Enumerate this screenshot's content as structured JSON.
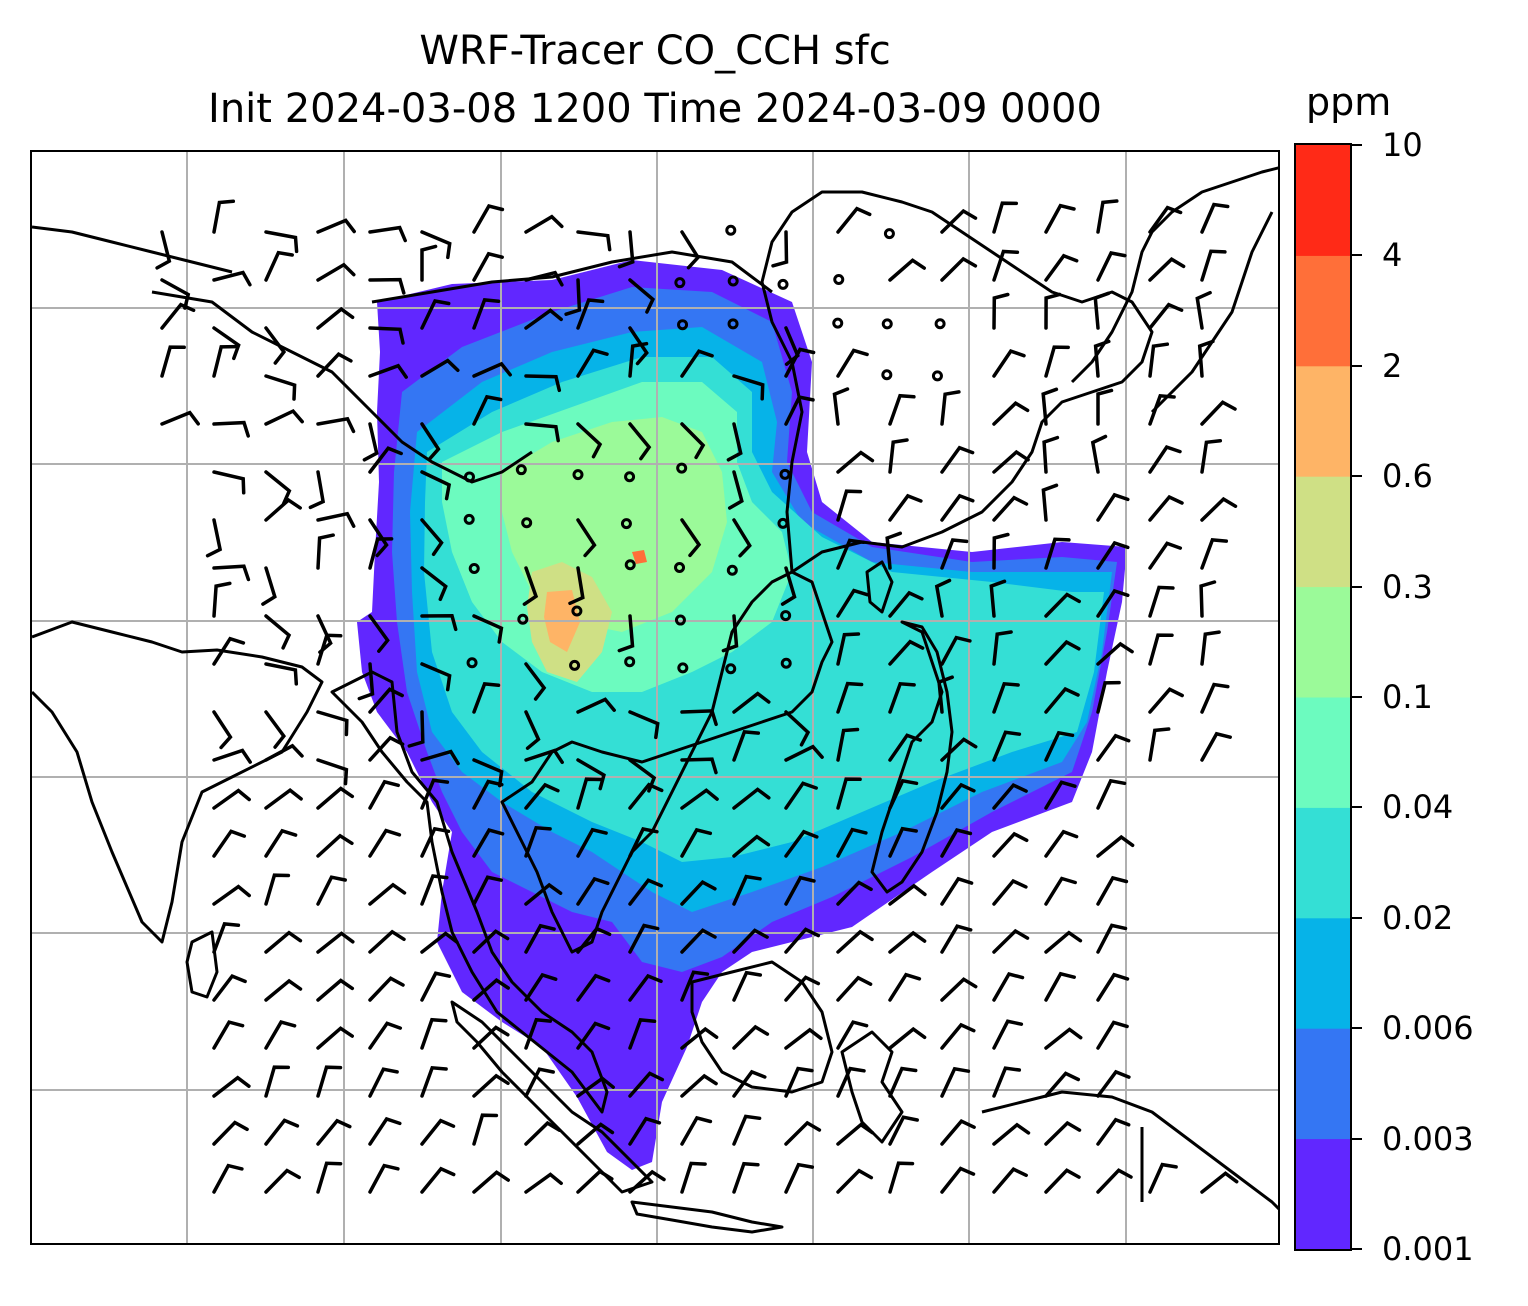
{
  "title": {
    "line1": "WRF-Tracer CO_CCH sfc",
    "line2": "Init 2024-03-08 1200 Time 2024-03-09 0000"
  },
  "colorbar": {
    "unit": "ppm",
    "levels": [
      "0.001",
      "0.003",
      "0.006",
      "0.02",
      "0.04",
      "0.1",
      "0.3",
      "0.6",
      "2",
      "4",
      "10"
    ],
    "colors": [
      "#6127ff",
      "#3476f3",
      "#06b3e8",
      "#34dfd5",
      "#6cfbbf",
      "#9bfa99",
      "#cfe085",
      "#feb466",
      "#ff6f39",
      "#ff2a17"
    ]
  },
  "map": {
    "gridlines": "on",
    "coastline_color": "#000000",
    "grid_color": "#b0b0b0",
    "wind_symbol": "barbs, calm circles"
  }
}
